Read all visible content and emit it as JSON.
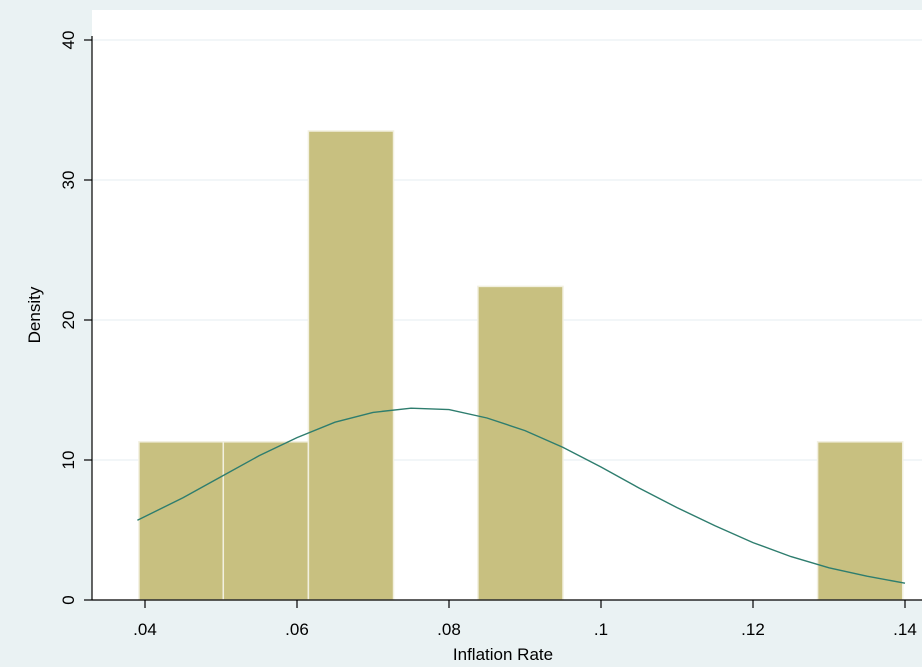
{
  "chart_data": {
    "type": "bar",
    "title": "",
    "xlabel": "Inflation Rate",
    "ylabel": "Density",
    "xlim": [
      0.04,
      0.14
    ],
    "ylim": [
      0,
      40
    ],
    "x_ticks": [
      ".04",
      ".06",
      ".08",
      ".1",
      ".12",
      ".14"
    ],
    "y_ticks": [
      "0",
      "10",
      "20",
      "30",
      "40"
    ],
    "x_tick_values": [
      0.04,
      0.06,
      0.08,
      0.1,
      0.12,
      0.14
    ],
    "y_tick_values": [
      0,
      10,
      20,
      30,
      40
    ],
    "bins": [
      {
        "start": 0.0392,
        "end": 0.0503,
        "density": 11.3
      },
      {
        "start": 0.0503,
        "end": 0.0615,
        "density": 11.3
      },
      {
        "start": 0.0615,
        "end": 0.0727,
        "density": 33.5
      },
      {
        "start": 0.0727,
        "end": 0.0838,
        "density": 0
      },
      {
        "start": 0.0838,
        "end": 0.095,
        "density": 22.4
      },
      {
        "start": 0.095,
        "end": 0.1062,
        "density": 0
      },
      {
        "start": 0.1062,
        "end": 0.1173,
        "density": 0
      },
      {
        "start": 0.1173,
        "end": 0.1285,
        "density": 0
      },
      {
        "start": 0.1285,
        "end": 0.1397,
        "density": 11.3
      }
    ],
    "normal_curve": {
      "x": [
        0.039,
        0.045,
        0.05,
        0.055,
        0.06,
        0.065,
        0.07,
        0.075,
        0.08,
        0.085,
        0.09,
        0.095,
        0.1,
        0.105,
        0.11,
        0.115,
        0.12,
        0.125,
        0.13,
        0.135,
        0.14
      ],
      "y": [
        5.7,
        7.3,
        8.8,
        10.3,
        11.6,
        12.7,
        13.4,
        13.7,
        13.6,
        13.0,
        12.1,
        10.9,
        9.5,
        8.0,
        6.6,
        5.3,
        4.1,
        3.1,
        2.3,
        1.7,
        1.2
      ]
    },
    "colors": {
      "bar_fill": "#c8c080",
      "bar_edge": "#f2f0e0",
      "curve": "#2e7d6e",
      "plot_bg": "#ffffff",
      "page_bg": "#eaf2f3",
      "grid": "#e4eef0"
    },
    "grid": true
  }
}
